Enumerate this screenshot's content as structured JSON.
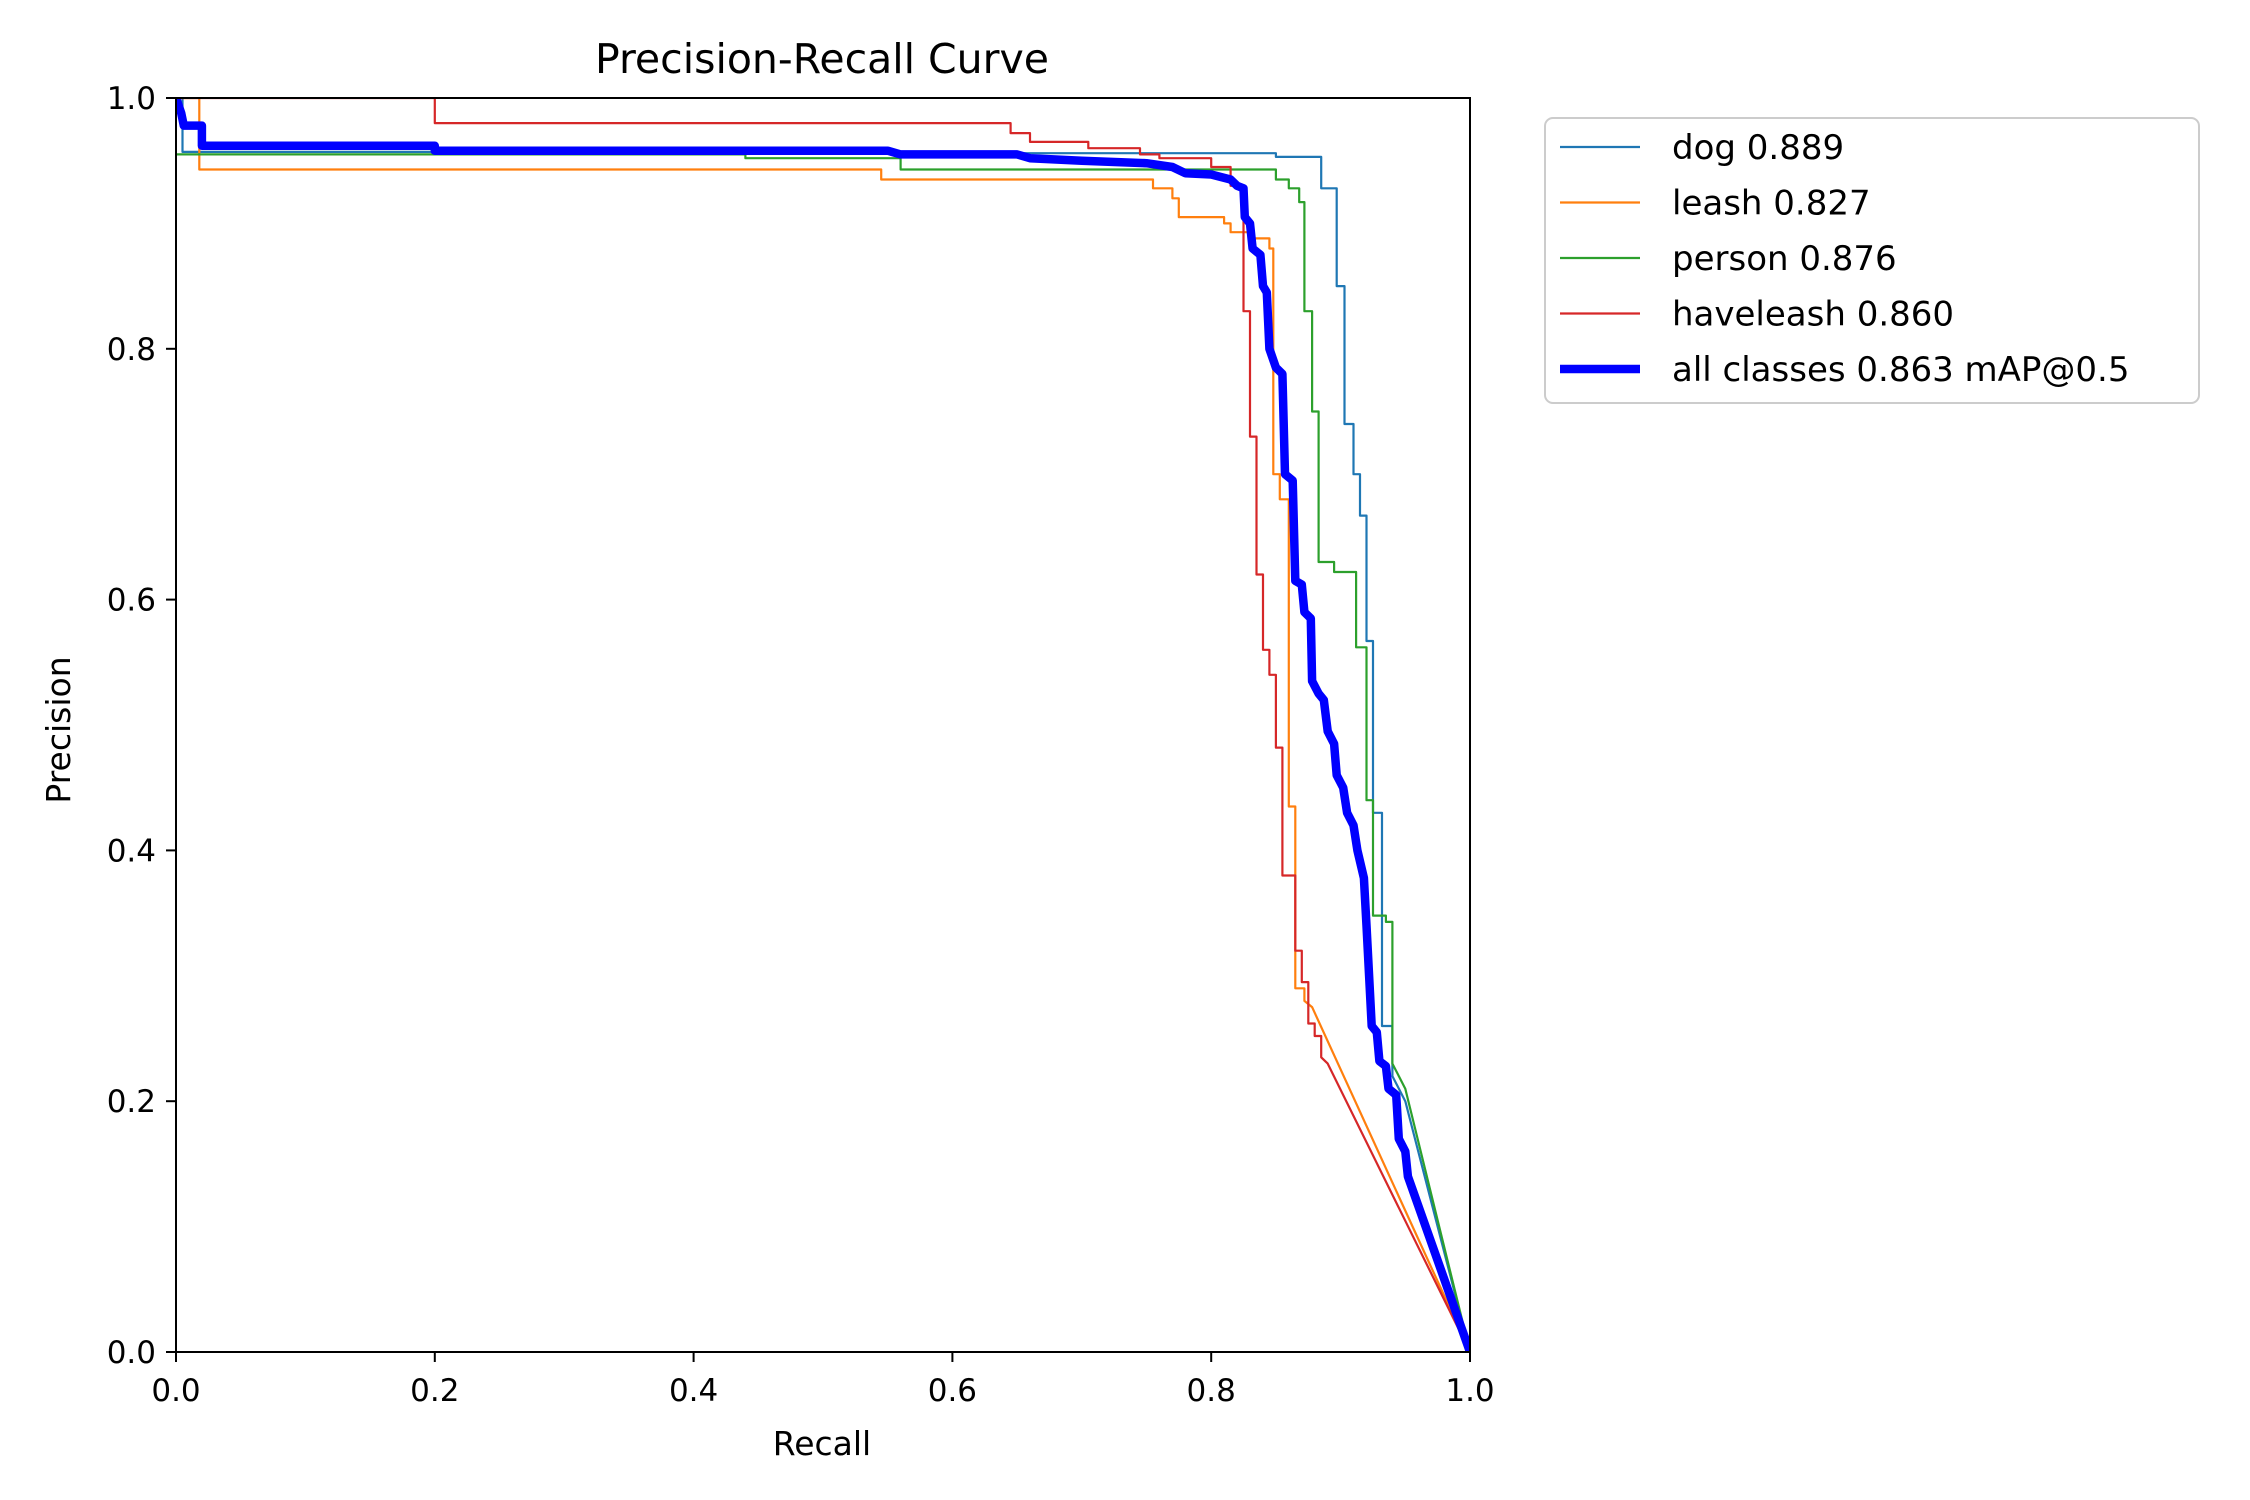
{
  "chart_data": {
    "type": "line",
    "title": "Precision-Recall Curve",
    "xlabel": "Recall",
    "ylabel": "Precision",
    "xlim": [
      0,
      1
    ],
    "ylim": [
      0,
      1
    ],
    "xticks": [
      "0.0",
      "0.2",
      "0.4",
      "0.6",
      "0.8",
      "1.0"
    ],
    "yticks": [
      "0.0",
      "0.2",
      "0.4",
      "0.6",
      "0.8",
      "1.0"
    ],
    "grid": false,
    "legend_position": "outside-top-right",
    "series": [
      {
        "name": "dog 0.889",
        "color": "#1f77b4",
        "points": [
          [
            0,
            1.0
          ],
          [
            0.005,
            1.0
          ],
          [
            0.005,
            0.957
          ],
          [
            0.3,
            0.957
          ],
          [
            0.3,
            0.956
          ],
          [
            0.85,
            0.956
          ],
          [
            0.85,
            0.953
          ],
          [
            0.885,
            0.953
          ],
          [
            0.885,
            0.928
          ],
          [
            0.897,
            0.928
          ],
          [
            0.897,
            0.85
          ],
          [
            0.903,
            0.85
          ],
          [
            0.903,
            0.74
          ],
          [
            0.91,
            0.74
          ],
          [
            0.91,
            0.7
          ],
          [
            0.915,
            0.7
          ],
          [
            0.915,
            0.667
          ],
          [
            0.92,
            0.667
          ],
          [
            0.92,
            0.567
          ],
          [
            0.925,
            0.567
          ],
          [
            0.925,
            0.43
          ],
          [
            0.932,
            0.43
          ],
          [
            0.932,
            0.26
          ],
          [
            0.94,
            0.26
          ],
          [
            0.94,
            0.22
          ],
          [
            0.95,
            0.2
          ],
          [
            1.0,
            0.0
          ]
        ]
      },
      {
        "name": "leash 0.827",
        "color": "#ff7f0e",
        "points": [
          [
            0,
            1.0
          ],
          [
            0.018,
            1.0
          ],
          [
            0.018,
            0.943
          ],
          [
            0.545,
            0.943
          ],
          [
            0.545,
            0.935
          ],
          [
            0.755,
            0.935
          ],
          [
            0.755,
            0.928
          ],
          [
            0.77,
            0.928
          ],
          [
            0.77,
            0.92
          ],
          [
            0.775,
            0.92
          ],
          [
            0.775,
            0.905
          ],
          [
            0.81,
            0.905
          ],
          [
            0.81,
            0.9
          ],
          [
            0.815,
            0.9
          ],
          [
            0.815,
            0.893
          ],
          [
            0.83,
            0.893
          ],
          [
            0.83,
            0.888
          ],
          [
            0.845,
            0.888
          ],
          [
            0.845,
            0.88
          ],
          [
            0.848,
            0.88
          ],
          [
            0.848,
            0.7
          ],
          [
            0.853,
            0.7
          ],
          [
            0.853,
            0.68
          ],
          [
            0.86,
            0.68
          ],
          [
            0.86,
            0.435
          ],
          [
            0.865,
            0.435
          ],
          [
            0.865,
            0.29
          ],
          [
            0.872,
            0.29
          ],
          [
            0.872,
            0.28
          ],
          [
            0.878,
            0.275
          ],
          [
            1.0,
            0.0
          ]
        ]
      },
      {
        "name": "person 0.876",
        "color": "#2ca02c",
        "points": [
          [
            0,
            0.955
          ],
          [
            0.44,
            0.955
          ],
          [
            0.44,
            0.952
          ],
          [
            0.56,
            0.952
          ],
          [
            0.56,
            0.943
          ],
          [
            0.85,
            0.943
          ],
          [
            0.85,
            0.935
          ],
          [
            0.86,
            0.935
          ],
          [
            0.86,
            0.928
          ],
          [
            0.868,
            0.928
          ],
          [
            0.868,
            0.917
          ],
          [
            0.872,
            0.917
          ],
          [
            0.872,
            0.83
          ],
          [
            0.878,
            0.83
          ],
          [
            0.878,
            0.75
          ],
          [
            0.883,
            0.75
          ],
          [
            0.883,
            0.63
          ],
          [
            0.895,
            0.63
          ],
          [
            0.895,
            0.622
          ],
          [
            0.912,
            0.622
          ],
          [
            0.912,
            0.562
          ],
          [
            0.92,
            0.562
          ],
          [
            0.92,
            0.44
          ],
          [
            0.925,
            0.44
          ],
          [
            0.925,
            0.348
          ],
          [
            0.935,
            0.348
          ],
          [
            0.935,
            0.343
          ],
          [
            0.94,
            0.343
          ],
          [
            0.94,
            0.23
          ],
          [
            0.95,
            0.21
          ],
          [
            1.0,
            0.0
          ]
        ]
      },
      {
        "name": "haveleash 0.860",
        "color": "#d62728",
        "points": [
          [
            0,
            1.0
          ],
          [
            0.2,
            1.0
          ],
          [
            0.2,
            0.98
          ],
          [
            0.645,
            0.98
          ],
          [
            0.645,
            0.972
          ],
          [
            0.66,
            0.972
          ],
          [
            0.66,
            0.965
          ],
          [
            0.705,
            0.965
          ],
          [
            0.705,
            0.96
          ],
          [
            0.745,
            0.96
          ],
          [
            0.745,
            0.955
          ],
          [
            0.76,
            0.955
          ],
          [
            0.76,
            0.952
          ],
          [
            0.8,
            0.952
          ],
          [
            0.8,
            0.945
          ],
          [
            0.815,
            0.945
          ],
          [
            0.815,
            0.93
          ],
          [
            0.825,
            0.93
          ],
          [
            0.825,
            0.83
          ],
          [
            0.83,
            0.83
          ],
          [
            0.83,
            0.73
          ],
          [
            0.835,
            0.73
          ],
          [
            0.835,
            0.62
          ],
          [
            0.84,
            0.62
          ],
          [
            0.84,
            0.56
          ],
          [
            0.845,
            0.56
          ],
          [
            0.845,
            0.54
          ],
          [
            0.85,
            0.54
          ],
          [
            0.85,
            0.482
          ],
          [
            0.855,
            0.482
          ],
          [
            0.855,
            0.38
          ],
          [
            0.865,
            0.38
          ],
          [
            0.865,
            0.32
          ],
          [
            0.87,
            0.32
          ],
          [
            0.87,
            0.295
          ],
          [
            0.875,
            0.295
          ],
          [
            0.875,
            0.262
          ],
          [
            0.88,
            0.262
          ],
          [
            0.88,
            0.252
          ],
          [
            0.885,
            0.252
          ],
          [
            0.885,
            0.235
          ],
          [
            0.89,
            0.23
          ],
          [
            1.0,
            0.0
          ]
        ]
      },
      {
        "name": "all classes 0.863 mAP@0.5",
        "color": "#0000ff",
        "bold": true,
        "points": [
          [
            0,
            1.0
          ],
          [
            0.004,
            0.988
          ],
          [
            0.006,
            0.978
          ],
          [
            0.02,
            0.978
          ],
          [
            0.02,
            0.962
          ],
          [
            0.2,
            0.962
          ],
          [
            0.2,
            0.958
          ],
          [
            0.55,
            0.958
          ],
          [
            0.56,
            0.955
          ],
          [
            0.65,
            0.955
          ],
          [
            0.66,
            0.952
          ],
          [
            0.7,
            0.95
          ],
          [
            0.75,
            0.948
          ],
          [
            0.77,
            0.945
          ],
          [
            0.78,
            0.94
          ],
          [
            0.8,
            0.939
          ],
          [
            0.815,
            0.935
          ],
          [
            0.82,
            0.93
          ],
          [
            0.825,
            0.928
          ],
          [
            0.826,
            0.905
          ],
          [
            0.83,
            0.9
          ],
          [
            0.832,
            0.88
          ],
          [
            0.838,
            0.875
          ],
          [
            0.84,
            0.85
          ],
          [
            0.843,
            0.845
          ],
          [
            0.845,
            0.8
          ],
          [
            0.85,
            0.785
          ],
          [
            0.855,
            0.78
          ],
          [
            0.857,
            0.7
          ],
          [
            0.863,
            0.695
          ],
          [
            0.865,
            0.615
          ],
          [
            0.87,
            0.612
          ],
          [
            0.872,
            0.59
          ],
          [
            0.877,
            0.585
          ],
          [
            0.878,
            0.535
          ],
          [
            0.883,
            0.525
          ],
          [
            0.887,
            0.52
          ],
          [
            0.89,
            0.495
          ],
          [
            0.895,
            0.485
          ],
          [
            0.897,
            0.46
          ],
          [
            0.902,
            0.45
          ],
          [
            0.905,
            0.43
          ],
          [
            0.91,
            0.42
          ],
          [
            0.913,
            0.4
          ],
          [
            0.918,
            0.378
          ],
          [
            0.92,
            0.34
          ],
          [
            0.922,
            0.3
          ],
          [
            0.924,
            0.26
          ],
          [
            0.928,
            0.255
          ],
          [
            0.93,
            0.232
          ],
          [
            0.935,
            0.228
          ],
          [
            0.937,
            0.21
          ],
          [
            0.943,
            0.205
          ],
          [
            0.945,
            0.17
          ],
          [
            0.95,
            0.16
          ],
          [
            0.952,
            0.14
          ],
          [
            1.0,
            0.0
          ]
        ]
      }
    ]
  }
}
